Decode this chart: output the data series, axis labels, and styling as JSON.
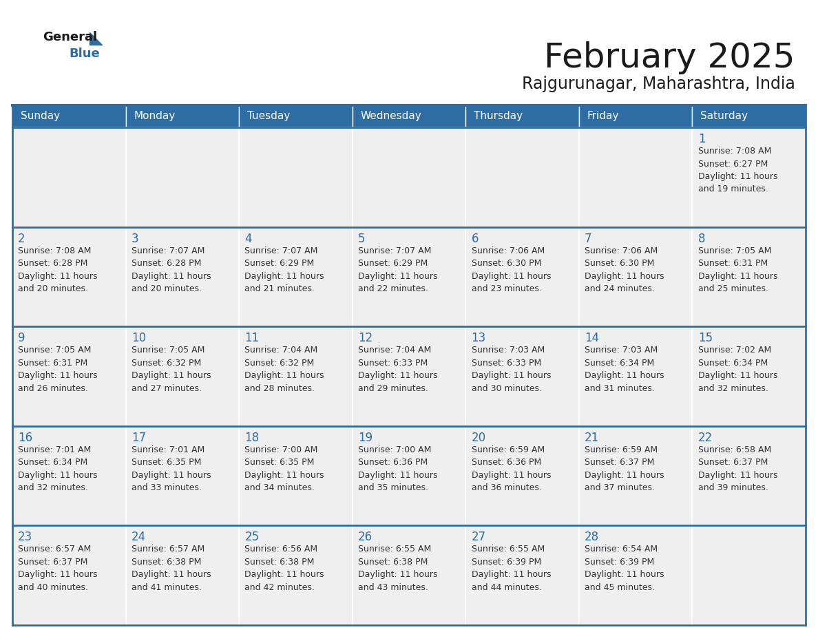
{
  "title": "February 2025",
  "subtitle": "Rajgurunagar, Maharashtra, India",
  "header_color": "#2E6DA4",
  "header_text_color": "#FFFFFF",
  "background_color": "#FFFFFF",
  "cell_bg_color": "#EFEFEF",
  "border_color": "#2E6DA4",
  "title_color": "#1a1a1a",
  "subtitle_color": "#1a1a1a",
  "day_number_color": "#2E6DA4",
  "cell_text_color": "#333333",
  "days_of_week": [
    "Sunday",
    "Monday",
    "Tuesday",
    "Wednesday",
    "Thursday",
    "Friday",
    "Saturday"
  ],
  "weeks": [
    [
      {
        "day": null,
        "info": null
      },
      {
        "day": null,
        "info": null
      },
      {
        "day": null,
        "info": null
      },
      {
        "day": null,
        "info": null
      },
      {
        "day": null,
        "info": null
      },
      {
        "day": null,
        "info": null
      },
      {
        "day": 1,
        "info": "Sunrise: 7:08 AM\nSunset: 6:27 PM\nDaylight: 11 hours\nand 19 minutes."
      }
    ],
    [
      {
        "day": 2,
        "info": "Sunrise: 7:08 AM\nSunset: 6:28 PM\nDaylight: 11 hours\nand 20 minutes."
      },
      {
        "day": 3,
        "info": "Sunrise: 7:07 AM\nSunset: 6:28 PM\nDaylight: 11 hours\nand 20 minutes."
      },
      {
        "day": 4,
        "info": "Sunrise: 7:07 AM\nSunset: 6:29 PM\nDaylight: 11 hours\nand 21 minutes."
      },
      {
        "day": 5,
        "info": "Sunrise: 7:07 AM\nSunset: 6:29 PM\nDaylight: 11 hours\nand 22 minutes."
      },
      {
        "day": 6,
        "info": "Sunrise: 7:06 AM\nSunset: 6:30 PM\nDaylight: 11 hours\nand 23 minutes."
      },
      {
        "day": 7,
        "info": "Sunrise: 7:06 AM\nSunset: 6:30 PM\nDaylight: 11 hours\nand 24 minutes."
      },
      {
        "day": 8,
        "info": "Sunrise: 7:05 AM\nSunset: 6:31 PM\nDaylight: 11 hours\nand 25 minutes."
      }
    ],
    [
      {
        "day": 9,
        "info": "Sunrise: 7:05 AM\nSunset: 6:31 PM\nDaylight: 11 hours\nand 26 minutes."
      },
      {
        "day": 10,
        "info": "Sunrise: 7:05 AM\nSunset: 6:32 PM\nDaylight: 11 hours\nand 27 minutes."
      },
      {
        "day": 11,
        "info": "Sunrise: 7:04 AM\nSunset: 6:32 PM\nDaylight: 11 hours\nand 28 minutes."
      },
      {
        "day": 12,
        "info": "Sunrise: 7:04 AM\nSunset: 6:33 PM\nDaylight: 11 hours\nand 29 minutes."
      },
      {
        "day": 13,
        "info": "Sunrise: 7:03 AM\nSunset: 6:33 PM\nDaylight: 11 hours\nand 30 minutes."
      },
      {
        "day": 14,
        "info": "Sunrise: 7:03 AM\nSunset: 6:34 PM\nDaylight: 11 hours\nand 31 minutes."
      },
      {
        "day": 15,
        "info": "Sunrise: 7:02 AM\nSunset: 6:34 PM\nDaylight: 11 hours\nand 32 minutes."
      }
    ],
    [
      {
        "day": 16,
        "info": "Sunrise: 7:01 AM\nSunset: 6:34 PM\nDaylight: 11 hours\nand 32 minutes."
      },
      {
        "day": 17,
        "info": "Sunrise: 7:01 AM\nSunset: 6:35 PM\nDaylight: 11 hours\nand 33 minutes."
      },
      {
        "day": 18,
        "info": "Sunrise: 7:00 AM\nSunset: 6:35 PM\nDaylight: 11 hours\nand 34 minutes."
      },
      {
        "day": 19,
        "info": "Sunrise: 7:00 AM\nSunset: 6:36 PM\nDaylight: 11 hours\nand 35 minutes."
      },
      {
        "day": 20,
        "info": "Sunrise: 6:59 AM\nSunset: 6:36 PM\nDaylight: 11 hours\nand 36 minutes."
      },
      {
        "day": 21,
        "info": "Sunrise: 6:59 AM\nSunset: 6:37 PM\nDaylight: 11 hours\nand 37 minutes."
      },
      {
        "day": 22,
        "info": "Sunrise: 6:58 AM\nSunset: 6:37 PM\nDaylight: 11 hours\nand 39 minutes."
      }
    ],
    [
      {
        "day": 23,
        "info": "Sunrise: 6:57 AM\nSunset: 6:37 PM\nDaylight: 11 hours\nand 40 minutes."
      },
      {
        "day": 24,
        "info": "Sunrise: 6:57 AM\nSunset: 6:38 PM\nDaylight: 11 hours\nand 41 minutes."
      },
      {
        "day": 25,
        "info": "Sunrise: 6:56 AM\nSunset: 6:38 PM\nDaylight: 11 hours\nand 42 minutes."
      },
      {
        "day": 26,
        "info": "Sunrise: 6:55 AM\nSunset: 6:38 PM\nDaylight: 11 hours\nand 43 minutes."
      },
      {
        "day": 27,
        "info": "Sunrise: 6:55 AM\nSunset: 6:39 PM\nDaylight: 11 hours\nand 44 minutes."
      },
      {
        "day": 28,
        "info": "Sunrise: 6:54 AM\nSunset: 6:39 PM\nDaylight: 11 hours\nand 45 minutes."
      },
      {
        "day": null,
        "info": null
      }
    ]
  ],
  "logo_color_general": "#1a1a1a",
  "logo_color_blue": "#2E6DA4",
  "logo_triangle_color": "#2E6DA4",
  "title_fontsize": 36,
  "subtitle_fontsize": 17,
  "header_fontsize": 11,
  "day_num_fontsize": 12,
  "cell_text_fontsize": 9
}
